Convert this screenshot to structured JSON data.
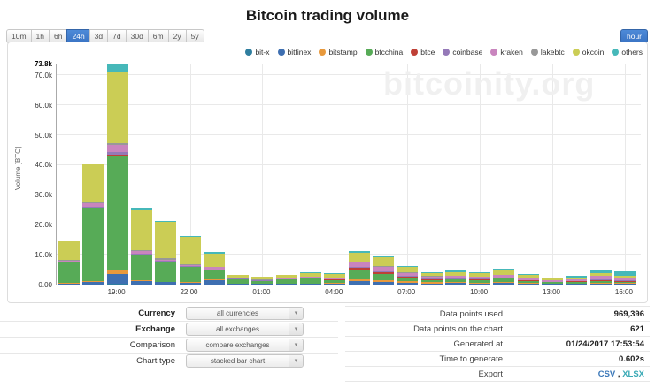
{
  "page": {
    "title": "Bitcoin trading volume"
  },
  "toolbar": {
    "ranges": [
      "10m",
      "1h",
      "6h",
      "24h",
      "3d",
      "7d",
      "30d",
      "6m",
      "2y",
      "5y"
    ],
    "active_range": "24h",
    "interval_button": "hour"
  },
  "watermark": "bitcoinity.org",
  "chart_data": {
    "type": "bar",
    "stacked": true,
    "title": "Bitcoin trading volume",
    "xlabel": "",
    "ylabel": "Volume [BTC]",
    "ylim": [
      0,
      73800
    ],
    "grid": true,
    "legend_position": "top-right",
    "yticks": [
      {
        "v": 0,
        "label": "0.00"
      },
      {
        "v": 10000,
        "label": "10.0k"
      },
      {
        "v": 20000,
        "label": "20.0k"
      },
      {
        "v": 30000,
        "label": "30.0k"
      },
      {
        "v": 40000,
        "label": "40.0k"
      },
      {
        "v": 50000,
        "label": "50.0k"
      },
      {
        "v": 60000,
        "label": "60.0k"
      },
      {
        "v": 70000,
        "label": "70.0k"
      }
    ],
    "ymax_tick": {
      "v": 73800,
      "label": "73.8k"
    },
    "categories": [
      "17:00",
      "18:00",
      "19:00",
      "20:00",
      "21:00",
      "22:00",
      "23:00",
      "00:00",
      "01:00",
      "02:00",
      "03:00",
      "04:00",
      "05:00",
      "06:00",
      "07:00",
      "08:00",
      "09:00",
      "10:00",
      "11:00",
      "12:00",
      "13:00",
      "14:00",
      "15:00",
      "16:00"
    ],
    "x_tick_indices": [
      2,
      5,
      8,
      11,
      14,
      17,
      20,
      23
    ],
    "series": [
      {
        "name": "bit-x",
        "color": "#2f7e9f",
        "values": [
          100,
          100,
          200,
          100,
          100,
          100,
          100,
          50,
          50,
          50,
          50,
          50,
          100,
          100,
          100,
          50,
          50,
          50,
          50,
          50,
          50,
          50,
          50,
          50
        ]
      },
      {
        "name": "bitfinex",
        "color": "#3e6fb1",
        "values": [
          300,
          800,
          3300,
          1100,
          700,
          500,
          1400,
          200,
          150,
          200,
          250,
          300,
          1000,
          900,
          600,
          400,
          450,
          400,
          450,
          300,
          200,
          250,
          350,
          300
        ]
      },
      {
        "name": "bitstamp",
        "color": "#e8993c",
        "values": [
          100,
          200,
          1300,
          400,
          200,
          200,
          200,
          100,
          100,
          100,
          100,
          150,
          700,
          500,
          400,
          300,
          300,
          250,
          300,
          200,
          150,
          150,
          200,
          150
        ]
      },
      {
        "name": "btcchina",
        "color": "#57ab57",
        "values": [
          7000,
          24500,
          38000,
          8300,
          6600,
          5000,
          2900,
          1500,
          900,
          1300,
          1900,
          1000,
          3200,
          2100,
          1200,
          800,
          900,
          800,
          1200,
          700,
          400,
          500,
          600,
          500
        ]
      },
      {
        "name": "btce",
        "color": "#bf4036",
        "values": [
          100,
          200,
          600,
          200,
          200,
          100,
          100,
          50,
          100,
          100,
          100,
          200,
          500,
          400,
          300,
          200,
          200,
          200,
          200,
          150,
          100,
          100,
          150,
          100
        ]
      },
      {
        "name": "coinbase",
        "color": "#9579b8",
        "values": [
          100,
          300,
          900,
          300,
          200,
          200,
          200,
          100,
          100,
          100,
          100,
          200,
          500,
          500,
          300,
          300,
          300,
          250,
          300,
          200,
          150,
          200,
          300,
          250
        ]
      },
      {
        "name": "kraken",
        "color": "#c985be",
        "values": [
          300,
          1000,
          2400,
          700,
          400,
          400,
          900,
          200,
          200,
          200,
          200,
          500,
          1500,
          1500,
          1000,
          700,
          700,
          650,
          700,
          600,
          400,
          500,
          1300,
          700
        ]
      },
      {
        "name": "lakebtc",
        "color": "#989898",
        "values": [
          400,
          400,
          600,
          500,
          400,
          300,
          200,
          100,
          100,
          100,
          100,
          100,
          300,
          300,
          200,
          150,
          150,
          150,
          150,
          100,
          100,
          100,
          150,
          100
        ]
      },
      {
        "name": "okcoin",
        "color": "#cbcd55",
        "values": [
          6000,
          12700,
          23500,
          13200,
          12200,
          9100,
          4500,
          1000,
          900,
          1100,
          1200,
          1200,
          2900,
          2800,
          1700,
          1100,
          1200,
          1050,
          1300,
          900,
          500,
          650,
          900,
          700
        ]
      },
      {
        "name": "others",
        "color": "#46b8b9",
        "values": [
          200,
          300,
          3000,
          1000,
          300,
          300,
          400,
          100,
          100,
          150,
          200,
          200,
          500,
          500,
          400,
          300,
          350,
          300,
          550,
          400,
          250,
          400,
          900,
          1750
        ]
      }
    ]
  },
  "controls": {
    "rows": [
      {
        "label": "Currency",
        "value": "all currencies",
        "bold": true
      },
      {
        "label": "Exchange",
        "value": "all exchanges",
        "bold": true
      },
      {
        "label": "Comparison",
        "value": "compare exchanges",
        "bold": false
      },
      {
        "label": "Chart type",
        "value": "stacked bar chart",
        "bold": false
      }
    ]
  },
  "stats": {
    "rows": [
      {
        "label": "Data points used",
        "value": "969,396"
      },
      {
        "label": "Data points on the chart",
        "value": "621"
      },
      {
        "label": "Generated at",
        "value": "01/24/2017 17:53:54"
      },
      {
        "label": "Time to generate",
        "value": "0.602s"
      }
    ],
    "export_label": "Export",
    "export_separator": " , ",
    "export_links": [
      {
        "label": "CSV",
        "color": "#3a77b8"
      },
      {
        "label": "XLSX",
        "color": "#39a9b5"
      }
    ]
  }
}
